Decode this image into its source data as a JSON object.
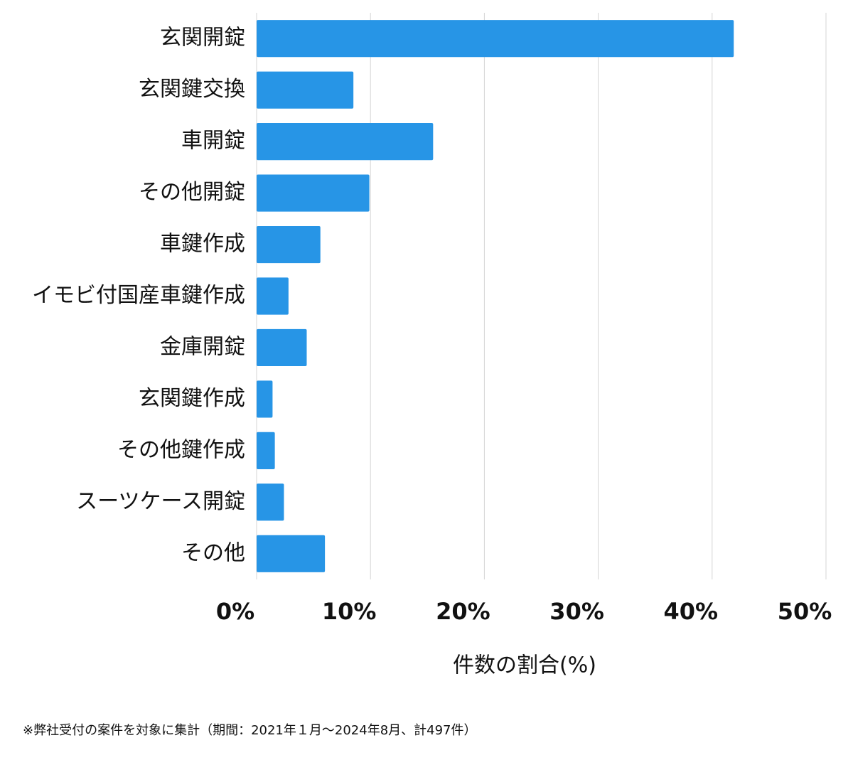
{
  "chart_data": {
    "type": "hbar",
    "categories": [
      "玄関開錠",
      "玄関鍵交換",
      "車開錠",
      "その他開錠",
      "車鍵作成",
      "イモビ付国産車鍵作成",
      "金庫開錠",
      "玄関鍵作成",
      "その他鍵作成",
      "スーツケース開錠",
      "その他"
    ],
    "values": [
      41.9,
      8.5,
      15.5,
      9.9,
      5.6,
      2.8,
      4.4,
      1.4,
      1.6,
      2.4,
      6.0
    ],
    "color": "#2795e6",
    "xlim": [
      0,
      50
    ],
    "xticks": [
      {
        "value": 0,
        "label": "0%"
      },
      {
        "value": 10,
        "label": "10%"
      },
      {
        "value": 20,
        "label": "20%"
      },
      {
        "value": 30,
        "label": "30%"
      },
      {
        "value": 40,
        "label": "40%"
      },
      {
        "value": 50,
        "label": "50%"
      }
    ],
    "xlabel": "件数の割合(%)",
    "grid": true,
    "footnote": "※弊社受付の案件を対象に集計（期間：2021年１月〜2024年8月、計497件）"
  }
}
